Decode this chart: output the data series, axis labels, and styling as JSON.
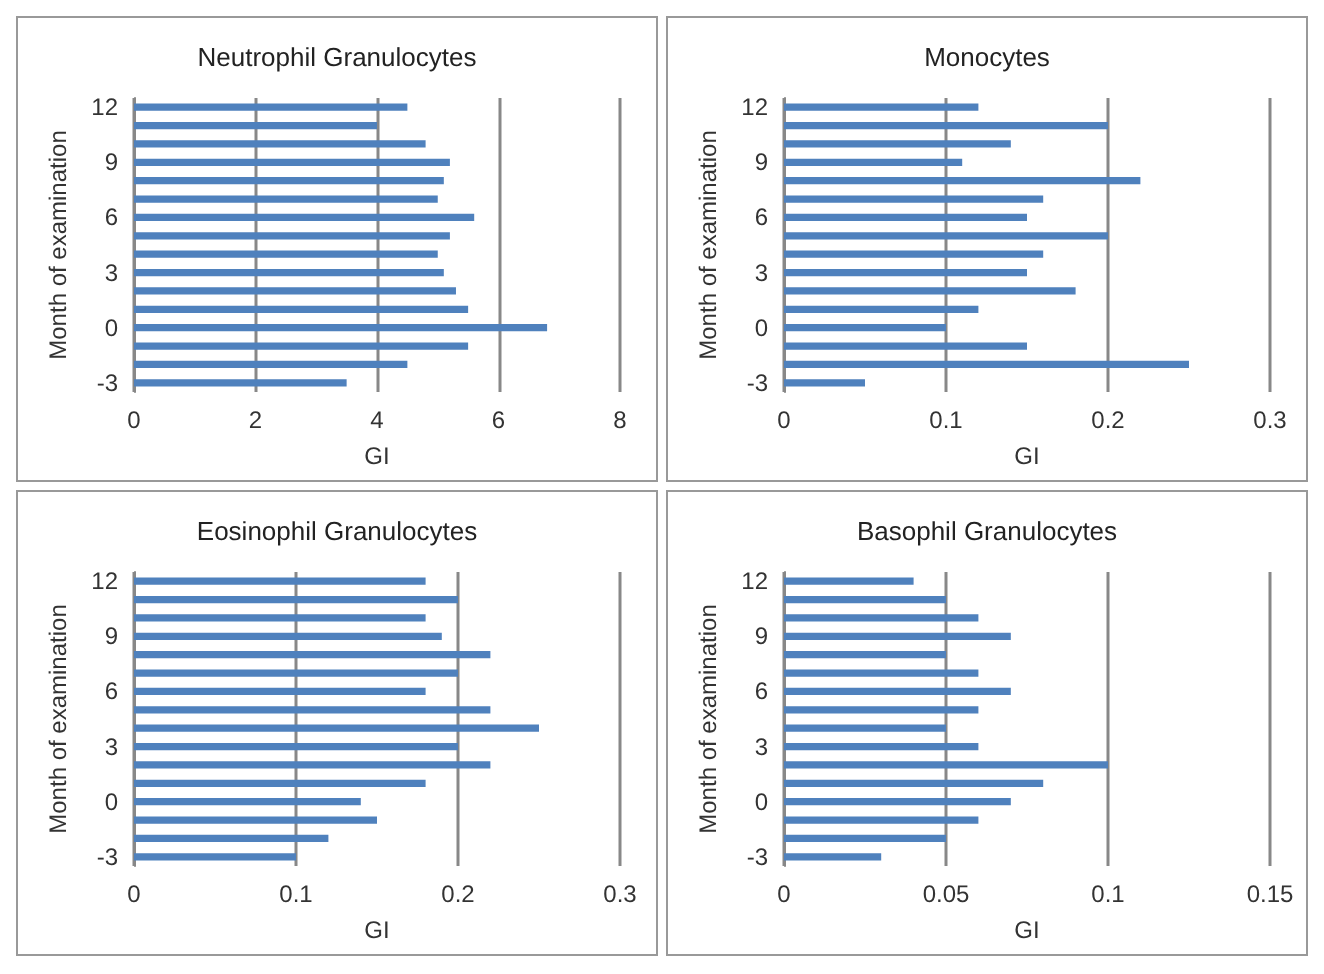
{
  "chart_data": [
    {
      "type": "bar",
      "orientation": "horizontal",
      "title": "Neutrophil Granulocytes",
      "xlabel": "GI",
      "ylabel": "Month of examination",
      "categories": [
        "12",
        null,
        null,
        "9",
        null,
        null,
        "6",
        null,
        null,
        "3",
        null,
        null,
        "0",
        null,
        null,
        "-3"
      ],
      "values": [
        4.5,
        4.0,
        4.8,
        5.2,
        5.1,
        5.0,
        5.6,
        5.2,
        5.0,
        5.1,
        5.3,
        5.5,
        6.8,
        5.5,
        4.5,
        3.5
      ],
      "color": "#4f81bd",
      "xlim": [
        0,
        8
      ],
      "xticks": [
        0,
        2,
        4,
        6,
        8
      ],
      "grid": "x"
    },
    {
      "type": "bar",
      "orientation": "horizontal",
      "title": "Monocytes",
      "xlabel": "GI",
      "ylabel": "Month of examination",
      "categories": [
        "12",
        null,
        null,
        "9",
        null,
        null,
        "6",
        null,
        null,
        "3",
        null,
        null,
        "0",
        null,
        null,
        "-3"
      ],
      "values": [
        0.12,
        0.2,
        0.14,
        0.11,
        0.22,
        0.16,
        0.15,
        0.2,
        0.16,
        0.15,
        0.18,
        0.12,
        0.1,
        0.15,
        0.25,
        0.05
      ],
      "color": "#4f81bd",
      "xlim": [
        0,
        0.3
      ],
      "xticks": [
        0,
        0.1,
        0.2,
        0.3
      ],
      "grid": "x"
    },
    {
      "type": "bar",
      "orientation": "horizontal",
      "title": "Eosinophil Granulocytes",
      "xlabel": "GI",
      "ylabel": "Month of examination",
      "categories": [
        "12",
        null,
        null,
        "9",
        null,
        null,
        "6",
        null,
        null,
        "3",
        null,
        null,
        "0",
        null,
        null,
        "-3"
      ],
      "values": [
        0.18,
        0.2,
        0.18,
        0.19,
        0.22,
        0.2,
        0.18,
        0.22,
        0.25,
        0.2,
        0.22,
        0.18,
        0.14,
        0.15,
        0.12,
        0.1
      ],
      "color": "#4f81bd",
      "xlim": [
        0,
        0.3
      ],
      "xticks": [
        0,
        0.1,
        0.2,
        0.3
      ],
      "grid": "x"
    },
    {
      "type": "bar",
      "orientation": "horizontal",
      "title": "Basophil Granulocytes",
      "xlabel": "GI",
      "ylabel": "Month of examination",
      "categories": [
        "12",
        null,
        null,
        "9",
        null,
        null,
        "6",
        null,
        null,
        "3",
        null,
        null,
        "0",
        null,
        null,
        "-3"
      ],
      "values": [
        0.04,
        0.05,
        0.06,
        0.07,
        0.05,
        0.06,
        0.07,
        0.06,
        0.05,
        0.06,
        0.1,
        0.08,
        0.07,
        0.06,
        0.05,
        0.03
      ],
      "color": "#4f81bd",
      "xlim": [
        0,
        0.15
      ],
      "xticks": [
        0,
        0.05,
        0.1,
        0.15
      ],
      "grid": "x"
    }
  ]
}
